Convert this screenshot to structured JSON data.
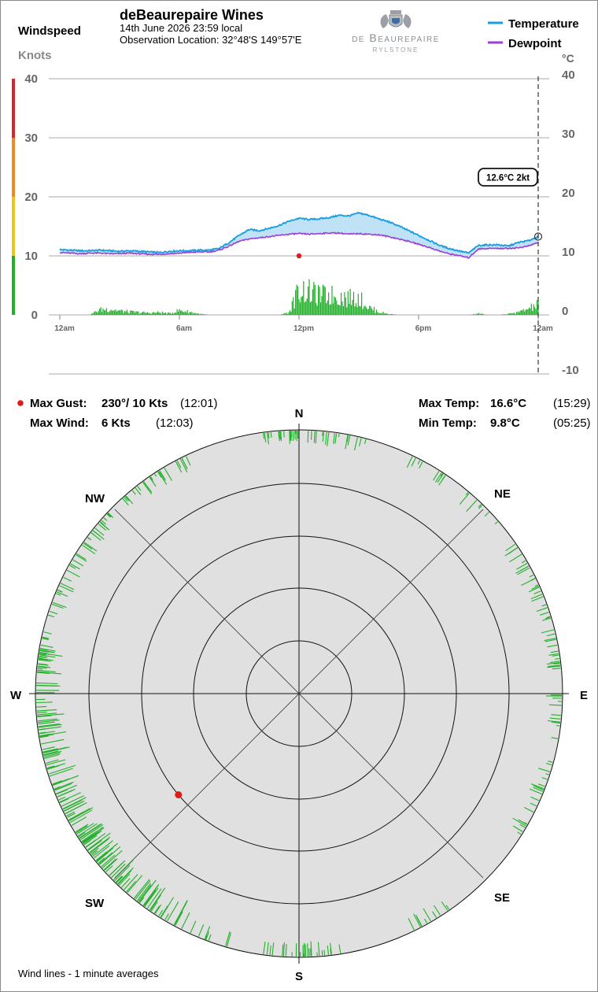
{
  "header": {
    "title": "deBeaurepaire Wines",
    "date_line": "14th June 2026  23:59 local",
    "location_line": "Observation Location: 32°48'S 149°57'E",
    "logo_small_caps": "de Beaurepaire",
    "logo_sub": "RYLSTONE",
    "left_title": "Windspeed",
    "left_unit": "Knots",
    "right_unit": "°C"
  },
  "colors": {
    "temperature": "#1a9de0",
    "dewpoint": "#9b3fd6",
    "fill": "#bfe2f6",
    "wind": "#22b02a",
    "gust": "#e01b1b",
    "compass_bg": "#e0e0e0",
    "scale_green": "#22b02a",
    "scale_yellow": "#f0c419",
    "scale_orange": "#f08a24",
    "scale_red": "#d9262b"
  },
  "stats": {
    "max_gust_label": "Max Gust:",
    "max_gust_value": "230°/  10 Kts",
    "max_gust_time": "(12:01)",
    "max_wind_label": "Max Wind:",
    "max_wind_value": "6 Kts",
    "max_wind_time": "(12:03)",
    "max_temp_label": "Max Temp:",
    "max_temp_value": "16.6°C",
    "max_temp_time": "(15:29)",
    "min_temp_label": "Min Temp:",
    "min_temp_value": "9.8°C",
    "min_temp_time": "(05:25)"
  },
  "compass": {
    "labels": {
      "N": "N",
      "NE": "NE",
      "E": "E",
      "SE": "SE",
      "S": "S",
      "SW": "SW",
      "W": "W",
      "NW": "NW"
    },
    "footnote": "Wind lines - 1 minute averages",
    "gust_direction_deg": 230,
    "gust_speed_kts": 10
  },
  "tooltip": "12.6°C  2kt",
  "chart_data": {
    "type": "line",
    "x_ticks": [
      "12am",
      "6am",
      "12pm",
      "6pm",
      "12am"
    ],
    "x_tick_hours": [
      0,
      6,
      12,
      18,
      24
    ],
    "y_left_ticks": [
      "0",
      "10",
      "20",
      "30",
      "40"
    ],
    "y_left_range": [
      0,
      40
    ],
    "y_right_ticks": [
      "-10",
      "0",
      "10",
      "20",
      "30",
      "40"
    ],
    "y_right_range": [
      -10,
      40
    ],
    "current_time_hour": 24,
    "max_gust_marker": {
      "hour": 12.0,
      "speed_kts": 10
    },
    "series": [
      {
        "name": "Temperature",
        "hours": [
          0,
          0.5,
          1,
          1.5,
          2,
          2.5,
          3,
          3.5,
          4,
          4.5,
          5,
          5.5,
          6,
          6.5,
          7,
          7.5,
          8,
          8.5,
          9,
          9.5,
          10,
          10.5,
          11,
          11.5,
          12,
          12.5,
          13,
          13.5,
          14,
          14.5,
          15,
          15.5,
          16,
          16.5,
          17,
          17.5,
          18,
          18.5,
          19,
          19.5,
          20,
          20.5,
          21,
          21.5,
          22,
          22.5,
          23,
          23.5,
          24
        ],
        "values": [
          10.4,
          10.3,
          10.2,
          10.2,
          10.3,
          10.2,
          10.1,
          10.2,
          10.1,
          10.0,
          9.9,
          10.1,
          10.2,
          10.2,
          10.3,
          10.3,
          10.6,
          11.6,
          12.8,
          13.8,
          13.6,
          14.0,
          14.5,
          15.2,
          15.7,
          15.5,
          15.6,
          15.8,
          16.2,
          16.1,
          16.6,
          16.2,
          15.6,
          15.1,
          14.4,
          13.6,
          12.8,
          12.0,
          11.2,
          10.6,
          10.2,
          9.8,
          11.1,
          11.2,
          11.2,
          11.0,
          11.6,
          11.9,
          12.6
        ]
      },
      {
        "name": "Dewpoint",
        "hours": [
          0,
          0.5,
          1,
          1.5,
          2,
          2.5,
          3,
          3.5,
          4,
          4.5,
          5,
          5.5,
          6,
          6.5,
          7,
          7.5,
          8,
          8.5,
          9,
          9.5,
          10,
          10.5,
          11,
          11.5,
          12,
          12.5,
          13,
          13.5,
          14,
          14.5,
          15,
          15.5,
          16,
          16.5,
          17,
          17.5,
          18,
          18.5,
          19,
          19.5,
          20,
          20.5,
          21,
          21.5,
          22,
          22.5,
          23,
          23.5,
          24
        ],
        "values": [
          9.9,
          9.8,
          9.7,
          9.8,
          9.8,
          9.7,
          9.7,
          9.8,
          9.7,
          9.6,
          9.6,
          9.7,
          9.8,
          9.9,
          10.0,
          10.0,
          10.3,
          11.0,
          11.8,
          12.2,
          12.4,
          12.6,
          12.8,
          13.0,
          13.1,
          13.0,
          13.1,
          13.2,
          13.2,
          13.0,
          13.1,
          13.0,
          12.9,
          12.6,
          12.2,
          11.8,
          11.3,
          10.8,
          10.2,
          9.7,
          9.4,
          9.0,
          10.5,
          10.6,
          10.6,
          10.6,
          10.7,
          11.0,
          11.6
        ]
      },
      {
        "name": "Windspeed",
        "hours": [
          0,
          0.5,
          1,
          1.5,
          2,
          2.5,
          3,
          3.5,
          4,
          4.5,
          5,
          5.5,
          6,
          6.5,
          7,
          7.5,
          8,
          8.5,
          9,
          9.5,
          10,
          10.5,
          11,
          11.5,
          12,
          12.5,
          13,
          13.5,
          14,
          14.5,
          15,
          15.5,
          16,
          16.5,
          17,
          17.5,
          18,
          18.5,
          19,
          19.5,
          20,
          20.5,
          21,
          21.5,
          22,
          22.5,
          23,
          23.5,
          24
        ],
        "values": [
          0,
          0,
          0,
          0,
          1,
          1.2,
          0.8,
          0.6,
          0.5,
          0.4,
          0.5,
          0.3,
          0.9,
          0.6,
          0.2,
          0,
          0,
          0,
          0,
          0,
          0,
          0,
          0,
          0.5,
          5.0,
          4.5,
          3.8,
          3.9,
          3.6,
          3.3,
          3.4,
          1.5,
          0.6,
          0.2,
          0,
          0,
          0,
          0,
          0,
          0,
          0,
          0,
          0.3,
          0,
          0,
          0.2,
          0.5,
          1.2,
          2.0
        ]
      }
    ],
    "wind_direction_sample_deg": [
      355,
      2,
      10,
      30,
      45,
      60,
      70,
      80,
      95,
      110,
      120,
      150,
      175,
      185,
      200,
      210,
      215,
      220,
      225,
      228,
      232,
      235,
      240,
      245,
      250,
      255,
      260,
      265,
      270,
      275,
      280,
      290,
      300,
      310,
      320,
      330
    ]
  }
}
